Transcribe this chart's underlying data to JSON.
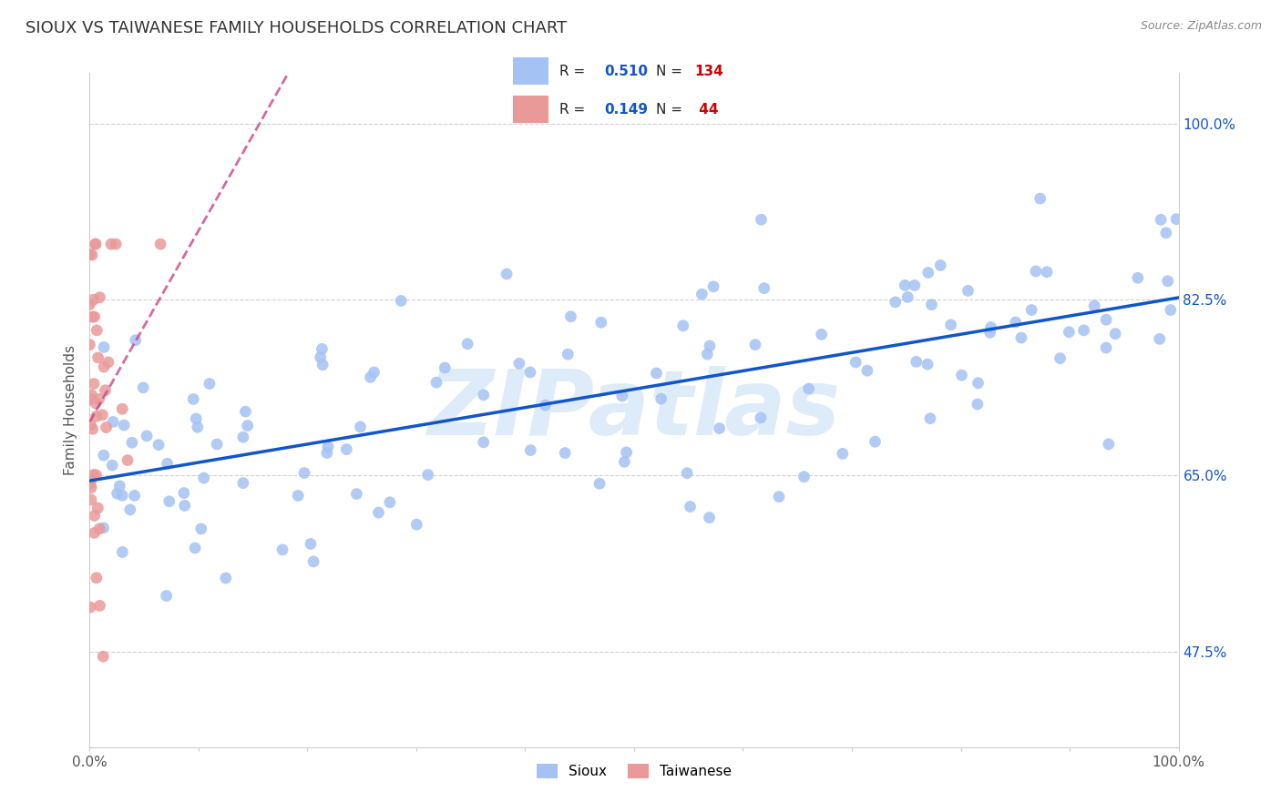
{
  "title": "SIOUX VS TAIWANESE FAMILY HOUSEHOLDS CORRELATION CHART",
  "source_text": "Source: ZipAtlas.com",
  "ylabel": "Family Households",
  "watermark": "ZIPatlas",
  "sioux_R": 0.51,
  "sioux_N": 134,
  "taiwanese_R": 0.149,
  "taiwanese_N": 44,
  "sioux_color": "#a4c2f4",
  "taiwanese_color": "#ea9999",
  "sioux_line_color": "#1155cc",
  "taiwanese_line_color": "#cc4488",
  "xlim": [
    0.0,
    1.0
  ],
  "ylim": [
    0.38,
    1.05
  ],
  "y_ticks": [
    0.475,
    0.65,
    0.825,
    1.0
  ],
  "y_tick_labels": [
    "47.5%",
    "65.0%",
    "82.5%",
    "100.0%"
  ],
  "title_fontsize": 13,
  "label_fontsize": 11,
  "tick_fontsize": 11,
  "right_label_color": "#1155cc",
  "legend_R_color": "#1155cc",
  "legend_N_color": "#cc0000",
  "background_color": "#ffffff",
  "grid_color": "#cccccc",
  "sioux_line_start_y": 0.655,
  "sioux_line_end_y": 0.825
}
